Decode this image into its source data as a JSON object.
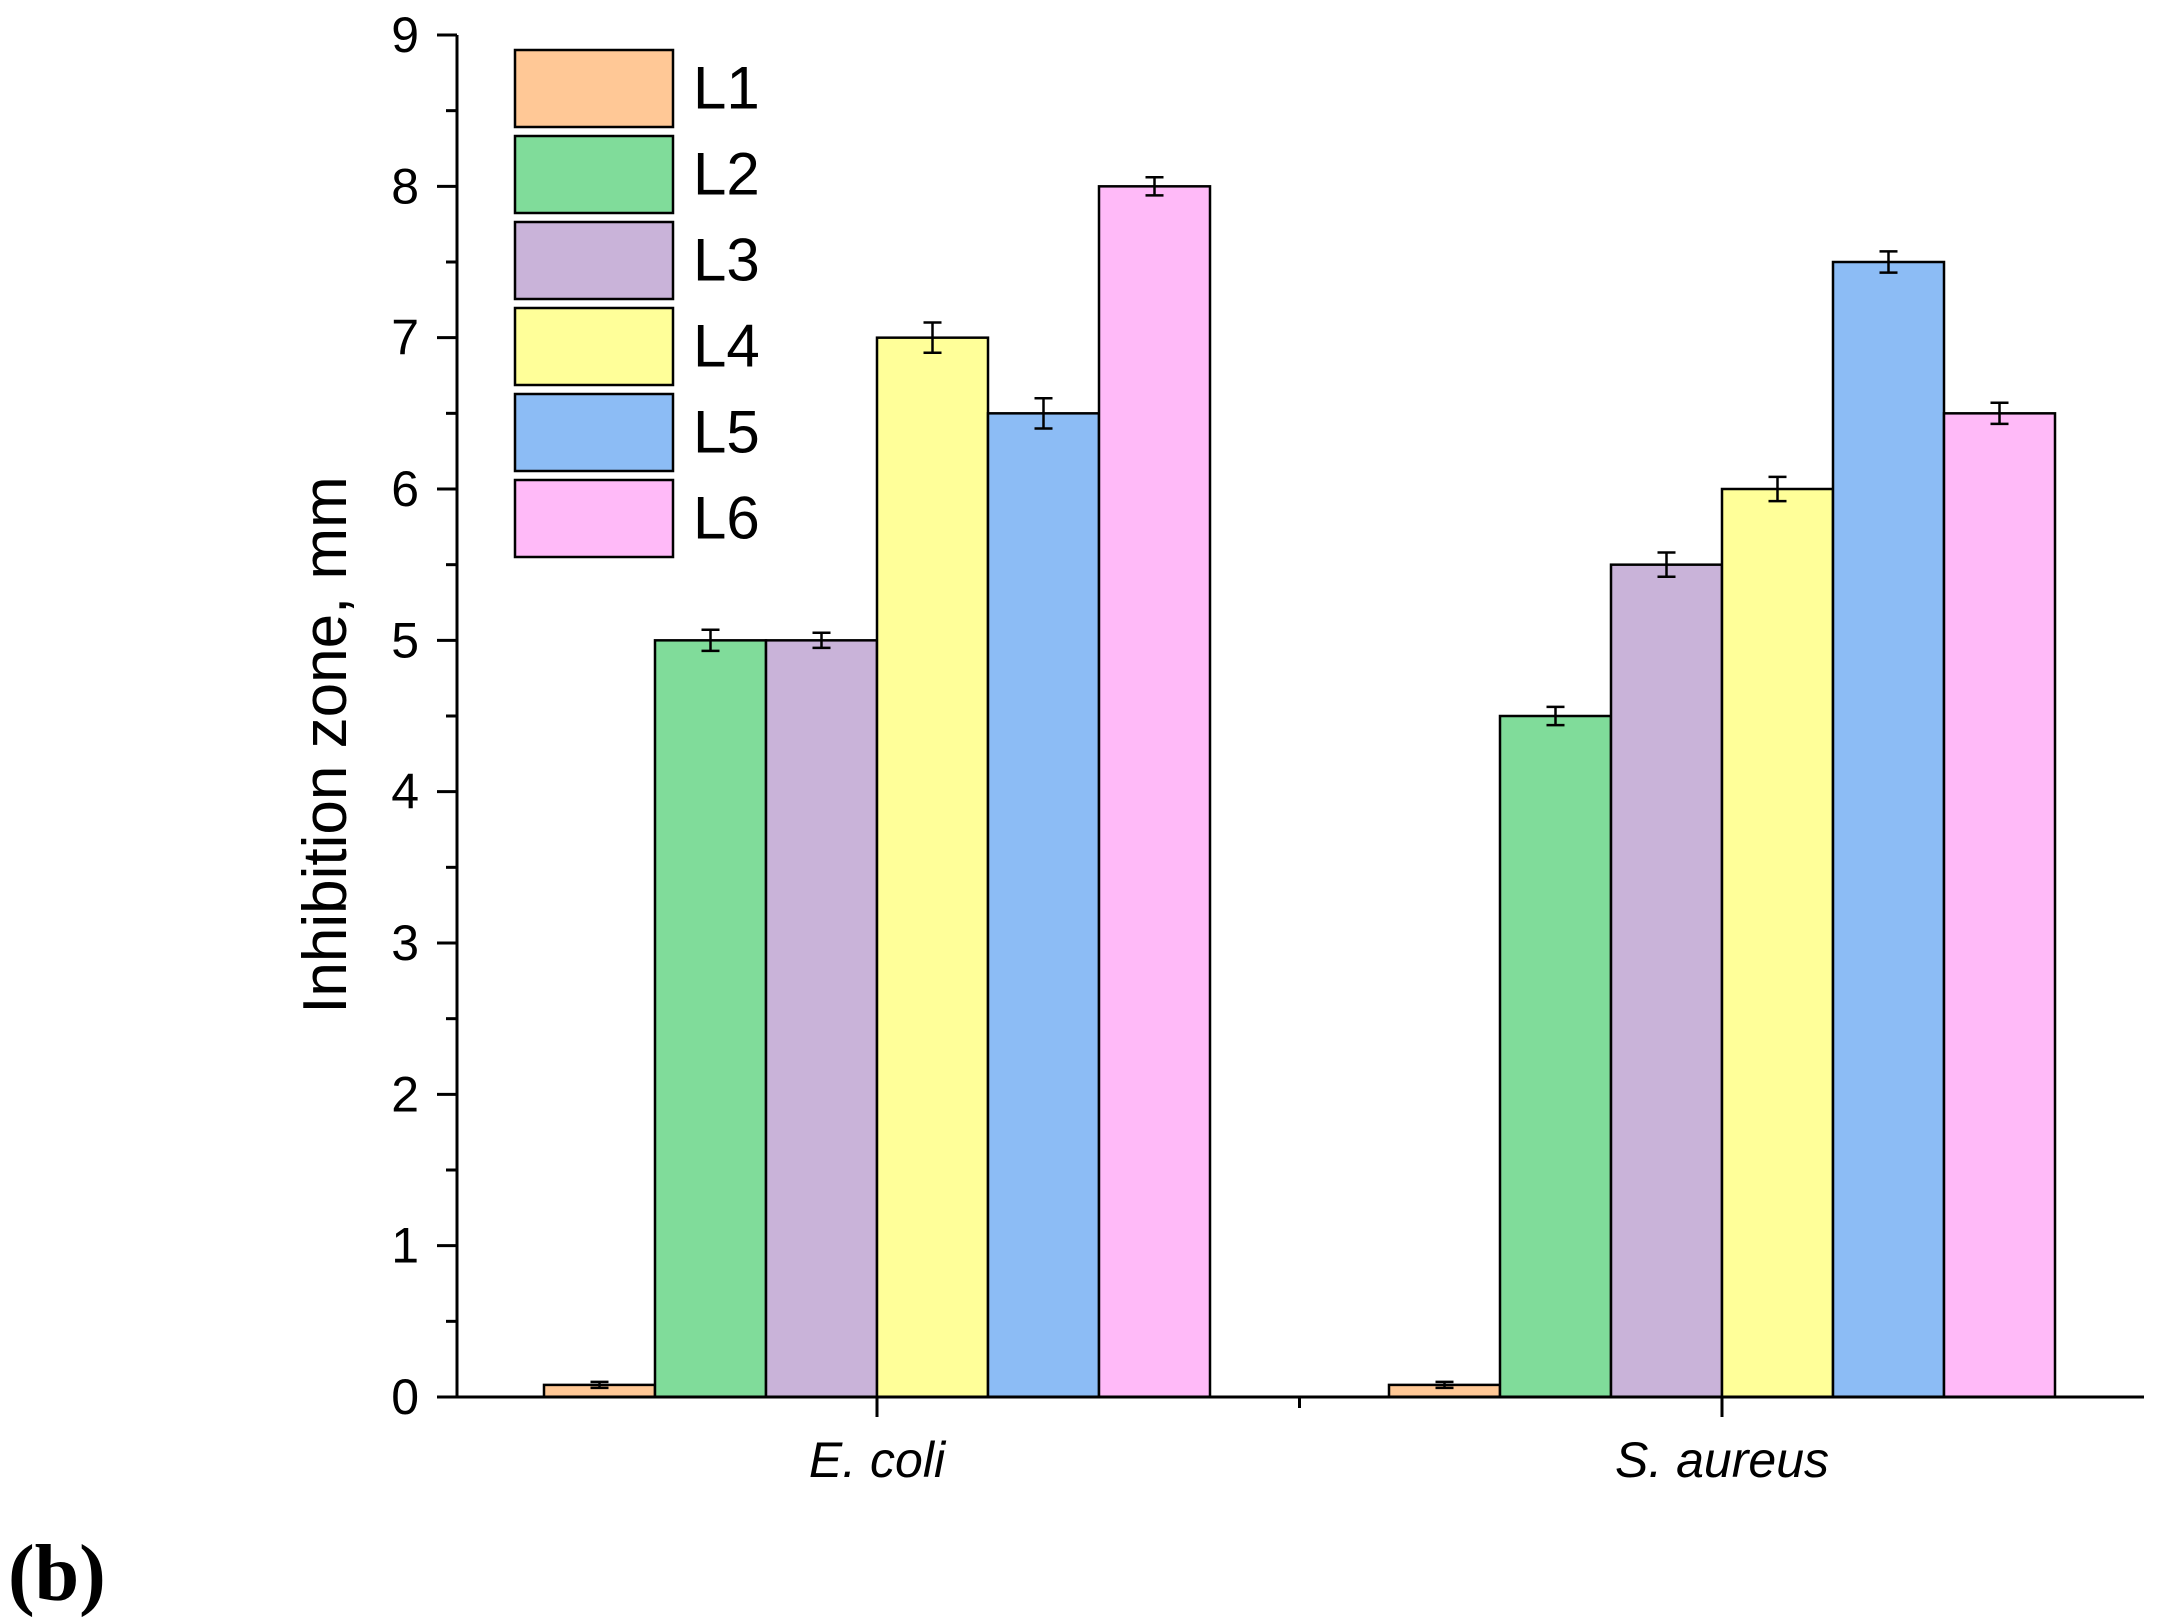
{
  "panel_label": "(b)",
  "colors": {
    "L1": "#FFC896",
    "L2": "#80DC9A",
    "L3": "#C9B3D9",
    "L4": "#FFFF99",
    "L5": "#8CBCF5",
    "L6": "#FFBAF8"
  },
  "chart_data": {
    "type": "bar",
    "title": "",
    "xlabel": "",
    "ylabel": "Inhibition zone, mm",
    "ylim": [
      0,
      9
    ],
    "yticks": [
      "0",
      "1",
      "2",
      "3",
      "4",
      "5",
      "6",
      "7",
      "8",
      "9"
    ],
    "grid": false,
    "legend_position": "top-left",
    "categories": [
      "E. coli",
      "S. aureus"
    ],
    "series": [
      {
        "name": "L1",
        "values": [
          0.08,
          0.08
        ],
        "errors": [
          0.02,
          0.02
        ]
      },
      {
        "name": "L2",
        "values": [
          5.0,
          4.5
        ],
        "errors": [
          0.07,
          0.06
        ]
      },
      {
        "name": "L3",
        "values": [
          5.0,
          5.5
        ],
        "errors": [
          0.05,
          0.08
        ]
      },
      {
        "name": "L4",
        "values": [
          7.0,
          6.0
        ],
        "errors": [
          0.1,
          0.08
        ]
      },
      {
        "name": "L5",
        "values": [
          6.5,
          7.5
        ],
        "errors": [
          0.1,
          0.07
        ]
      },
      {
        "name": "L6",
        "values": [
          8.0,
          6.5
        ],
        "errors": [
          0.06,
          0.07
        ]
      }
    ]
  }
}
